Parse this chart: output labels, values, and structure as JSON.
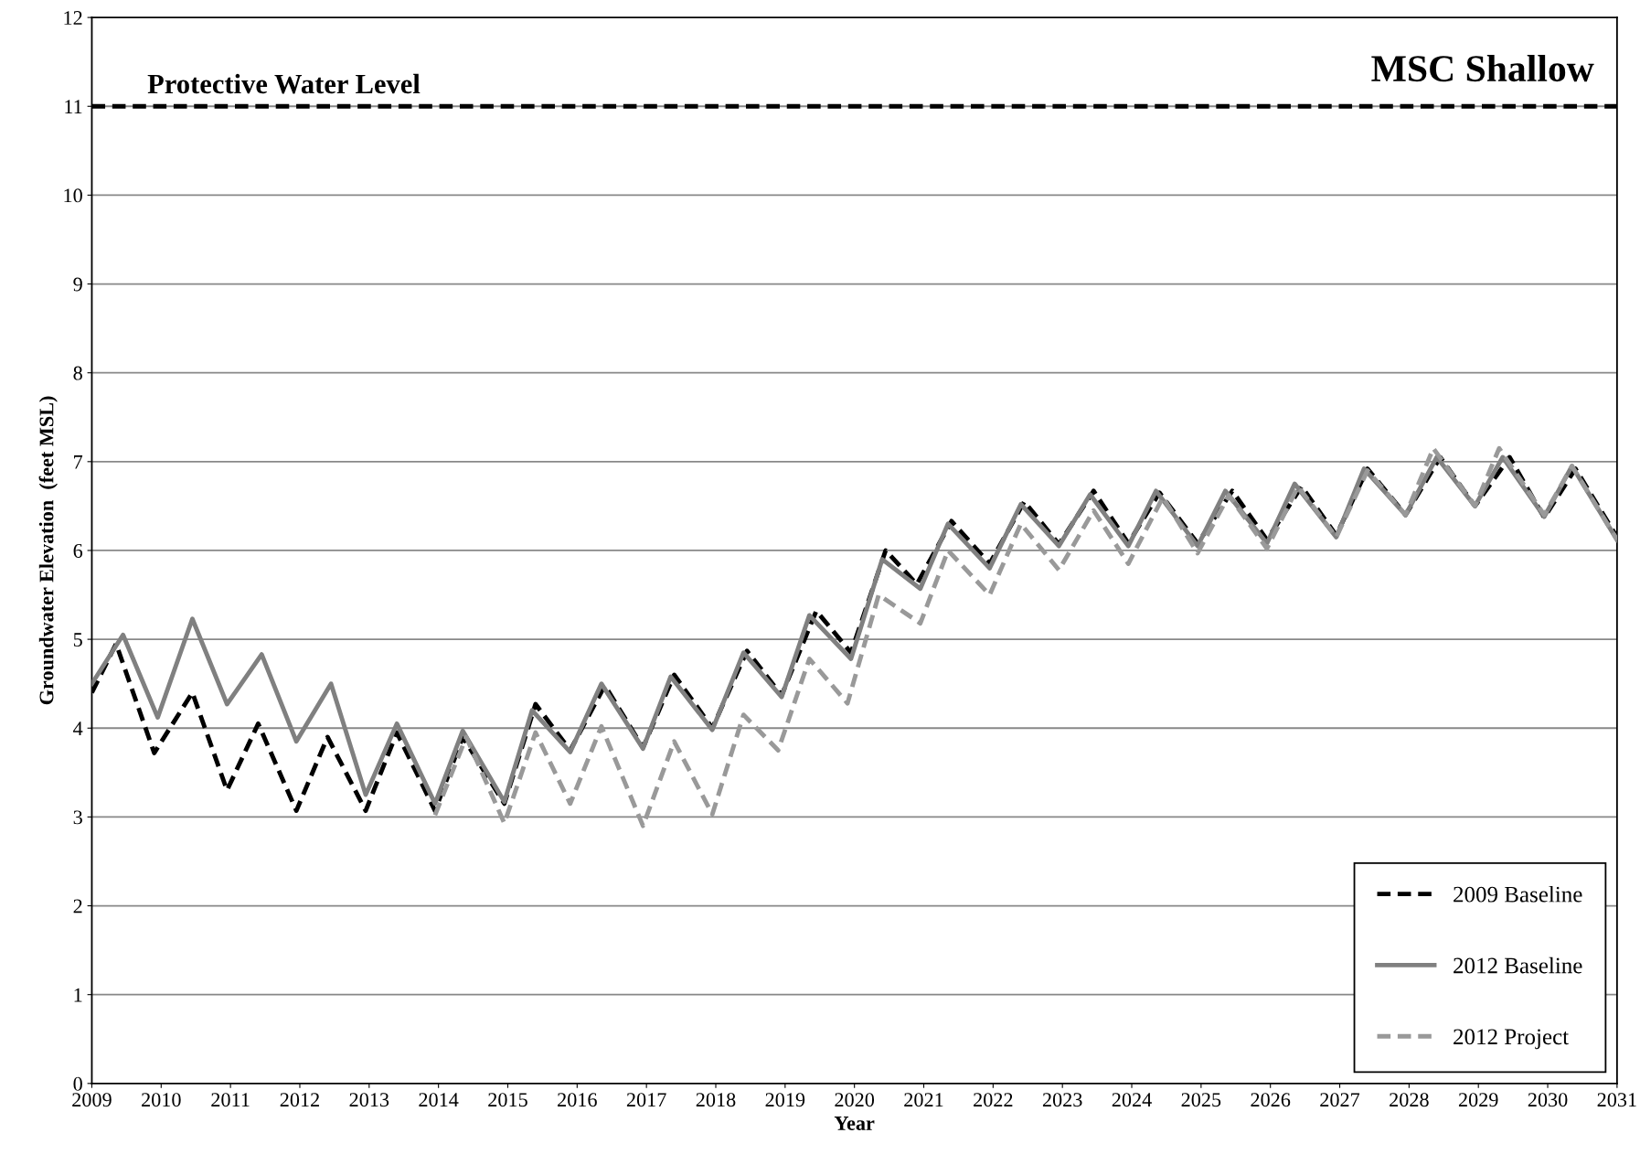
{
  "chart_data": {
    "type": "line",
    "title": "MSC Shallow",
    "xlabel": "Year",
    "ylabel": "Groundwater Elevation  (feet MSL)",
    "xlim": [
      2009,
      2031
    ],
    "xticks": [
      2009,
      2010,
      2011,
      2012,
      2013,
      2014,
      2015,
      2016,
      2017,
      2018,
      2019,
      2020,
      2021,
      2022,
      2023,
      2024,
      2025,
      2026,
      2027,
      2028,
      2029,
      2030,
      2031
    ],
    "ylim": [
      0,
      12
    ],
    "yticks": [
      0,
      1,
      2,
      3,
      4,
      5,
      6,
      7,
      8,
      9,
      10,
      11,
      12
    ],
    "grid": "y",
    "legend": "bottom right",
    "marker": "none",
    "ref_lines": [
      {
        "axis": "y",
        "value": 11,
        "label": "Protective Water Level",
        "color": "#000000",
        "line_style": "dashed"
      }
    ],
    "series": [
      {
        "name": "2009 Baseline",
        "color": "#000000",
        "line_style": "dashed",
        "x": [
          2009.0,
          2009.35,
          2009.9,
          2010.45,
          2010.95,
          2011.4,
          2011.95,
          2012.4,
          2012.95,
          2013.4,
          2013.95,
          2014.35,
          2014.95,
          2015.4,
          2015.9,
          2016.4,
          2016.95,
          2017.4,
          2017.95,
          2018.45,
          2018.95,
          2019.45,
          2019.95,
          2020.45,
          2020.9,
          2021.4,
          2021.95,
          2022.45,
          2022.95,
          2023.45,
          2023.95,
          2024.4,
          2024.95,
          2025.45,
          2025.95,
          2026.45,
          2026.95,
          2027.4,
          2027.95,
          2028.45,
          2028.95,
          2029.45,
          2029.95,
          2030.4,
          2031.0
        ],
        "values": [
          4.4,
          4.95,
          3.72,
          4.4,
          3.3,
          4.05,
          3.07,
          3.9,
          3.07,
          3.95,
          3.07,
          3.9,
          3.15,
          4.27,
          3.75,
          4.48,
          3.78,
          4.6,
          4.0,
          4.87,
          4.37,
          5.32,
          4.85,
          6.0,
          5.62,
          6.33,
          5.85,
          6.55,
          6.07,
          6.67,
          6.08,
          6.65,
          6.08,
          6.67,
          6.12,
          6.72,
          6.17,
          6.92,
          6.4,
          7.05,
          6.5,
          7.05,
          6.37,
          6.92,
          6.15
        ]
      },
      {
        "name": "2012 Baseline",
        "color": "#808080",
        "line_style": "solid",
        "x": [
          2009.0,
          2009.45,
          2009.95,
          2010.45,
          2010.95,
          2011.45,
          2011.95,
          2012.45,
          2012.95,
          2013.4,
          2013.95,
          2014.35,
          2014.95,
          2015.35,
          2015.9,
          2016.35,
          2016.95,
          2017.35,
          2017.95,
          2018.4,
          2018.95,
          2019.35,
          2019.95,
          2020.4,
          2020.95,
          2021.35,
          2021.95,
          2022.4,
          2022.95,
          2023.4,
          2023.95,
          2024.35,
          2024.95,
          2025.35,
          2025.95,
          2026.35,
          2026.95,
          2027.35,
          2027.95,
          2028.4,
          2028.95,
          2029.35,
          2029.95,
          2030.35,
          2031.0
        ],
        "values": [
          4.5,
          5.05,
          4.12,
          5.23,
          4.27,
          4.83,
          3.85,
          4.5,
          3.25,
          4.05,
          3.15,
          3.97,
          3.17,
          4.2,
          3.73,
          4.5,
          3.77,
          4.58,
          3.98,
          4.85,
          4.35,
          5.27,
          4.78,
          5.9,
          5.57,
          6.3,
          5.8,
          6.52,
          6.05,
          6.63,
          6.05,
          6.67,
          6.05,
          6.67,
          6.08,
          6.75,
          6.15,
          6.92,
          6.4,
          7.05,
          6.5,
          7.05,
          6.38,
          6.95,
          6.12
        ]
      },
      {
        "name": "2012 Project",
        "color": "#999999",
        "line_style": "dashed",
        "x": [
          2013.95,
          2014.4,
          2014.95,
          2015.4,
          2015.9,
          2016.35,
          2016.95,
          2017.4,
          2017.95,
          2018.4,
          2018.9,
          2019.35,
          2019.9,
          2020.35,
          2020.95,
          2021.35,
          2021.95,
          2022.4,
          2022.95,
          2023.45,
          2023.95,
          2024.45,
          2024.95,
          2025.4,
          2025.95,
          2026.4,
          2026.95,
          2027.4,
          2027.95,
          2028.35,
          2028.95,
          2029.3,
          2029.95,
          2030.35,
          2031.0
        ],
        "values": [
          3.02,
          3.9,
          2.93,
          3.95,
          3.15,
          4.02,
          2.9,
          3.85,
          3.03,
          4.15,
          3.75,
          4.78,
          4.28,
          5.5,
          5.18,
          6.0,
          5.5,
          6.3,
          5.78,
          6.45,
          5.85,
          6.6,
          5.97,
          6.62,
          6.02,
          6.72,
          6.15,
          6.9,
          6.4,
          7.15,
          6.5,
          7.15,
          6.4,
          6.95,
          6.12
        ]
      }
    ]
  }
}
